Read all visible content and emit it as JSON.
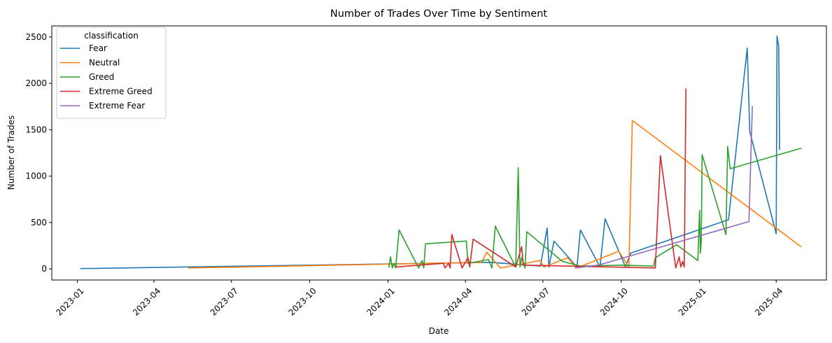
{
  "chart_data": {
    "type": "line",
    "title": "Number of Trades Over Time by Sentiment",
    "xlabel": "Date",
    "ylabel": "Number of Trades",
    "x_type": "date",
    "xlim": [
      "2022-12-02",
      "2025-05-30"
    ],
    "ylim": [
      -120,
      2620
    ],
    "x_ticks": [
      "2023-01",
      "2023-04",
      "2023-07",
      "2023-10",
      "2024-01",
      "2024-04",
      "2024-07",
      "2024-10",
      "2025-01",
      "2025-04"
    ],
    "y_ticks": [
      0,
      500,
      1000,
      1500,
      2000,
      2500
    ],
    "grid": false,
    "legend": {
      "title": "classification",
      "placement": "top-left"
    },
    "series": [
      {
        "name": "Fear",
        "color": "#1f77b4",
        "points": [
          [
            "2023-01-05",
            3
          ],
          [
            "2024-05-01",
            70
          ],
          [
            "2024-06-28",
            30
          ],
          [
            "2024-07-06",
            440
          ],
          [
            "2024-07-08",
            20
          ],
          [
            "2024-07-14",
            300
          ],
          [
            "2024-08-10",
            20
          ],
          [
            "2024-08-14",
            420
          ],
          [
            "2024-09-06",
            20
          ],
          [
            "2024-09-12",
            540
          ],
          [
            "2024-10-06",
            20
          ],
          [
            "2024-10-12",
            170
          ],
          [
            "2025-02-04",
            530
          ],
          [
            "2025-02-26",
            2380
          ],
          [
            "2025-03-01",
            1480
          ],
          [
            "2025-04-01",
            380
          ],
          [
            "2025-04-02",
            2510
          ],
          [
            "2025-04-04",
            2400
          ],
          [
            "2025-04-05",
            1290
          ]
        ]
      },
      {
        "name": "Neutral",
        "color": "#ff7f0e",
        "points": [
          [
            "2023-05-12",
            10
          ],
          [
            "2024-04-20",
            70
          ],
          [
            "2024-04-26",
            180
          ],
          [
            "2024-05-12",
            10
          ],
          [
            "2024-06-28",
            90
          ],
          [
            "2024-07-02",
            20
          ],
          [
            "2024-07-30",
            120
          ],
          [
            "2024-08-10",
            10
          ],
          [
            "2024-09-28",
            190
          ],
          [
            "2024-10-10",
            20
          ],
          [
            "2024-10-14",
            1600
          ],
          [
            "2025-04-01",
            440
          ],
          [
            "2025-04-30",
            240
          ]
        ]
      },
      {
        "name": "Greed",
        "color": "#2ca02c",
        "points": [
          [
            "2024-01-02",
            20
          ],
          [
            "2024-01-04",
            130
          ],
          [
            "2024-01-06",
            10
          ],
          [
            "2024-01-08",
            60
          ],
          [
            "2024-01-10",
            10
          ],
          [
            "2024-01-14",
            420
          ],
          [
            "2024-02-06",
            10
          ],
          [
            "2024-02-10",
            90
          ],
          [
            "2024-02-12",
            10
          ],
          [
            "2024-02-14",
            270
          ],
          [
            "2024-04-02",
            300
          ],
          [
            "2024-04-04",
            60
          ],
          [
            "2024-04-28",
            100
          ],
          [
            "2024-05-02",
            10
          ],
          [
            "2024-05-06",
            460
          ],
          [
            "2024-05-30",
            20
          ],
          [
            "2024-06-02",
            1090
          ],
          [
            "2024-06-04",
            20
          ],
          [
            "2024-06-06",
            120
          ],
          [
            "2024-06-10",
            10
          ],
          [
            "2024-06-12",
            400
          ],
          [
            "2024-07-24",
            80
          ],
          [
            "2024-08-14",
            30
          ],
          [
            "2024-10-02",
            40
          ],
          [
            "2024-11-08",
            30
          ],
          [
            "2024-11-10",
            120
          ],
          [
            "2024-12-05",
            260
          ],
          [
            "2024-12-30",
            90
          ],
          [
            "2025-01-01",
            630
          ],
          [
            "2025-01-02",
            170
          ],
          [
            "2025-01-03",
            300
          ],
          [
            "2025-01-04",
            1230
          ],
          [
            "2025-02-01",
            370
          ],
          [
            "2025-02-03",
            1320
          ],
          [
            "2025-02-06",
            1080
          ],
          [
            "2025-04-30",
            1300
          ]
        ]
      },
      {
        "name": "Extreme Greed",
        "color": "#d62728",
        "points": [
          [
            "2024-01-10",
            20
          ],
          [
            "2024-03-06",
            60
          ],
          [
            "2024-03-08",
            10
          ],
          [
            "2024-03-12",
            60
          ],
          [
            "2024-03-14",
            10
          ],
          [
            "2024-03-16",
            370
          ],
          [
            "2024-03-28",
            10
          ],
          [
            "2024-04-04",
            120
          ],
          [
            "2024-04-06",
            20
          ],
          [
            "2024-04-10",
            320
          ],
          [
            "2024-05-30",
            20
          ],
          [
            "2024-06-06",
            240
          ],
          [
            "2024-06-08",
            40
          ],
          [
            "2024-11-10",
            10
          ],
          [
            "2024-11-16",
            1220
          ],
          [
            "2024-12-04",
            10
          ],
          [
            "2024-12-08",
            130
          ],
          [
            "2024-12-10",
            20
          ],
          [
            "2024-12-12",
            80
          ],
          [
            "2024-12-14",
            20
          ],
          [
            "2024-12-16",
            1940
          ]
        ]
      },
      {
        "name": "Extreme Fear",
        "color": "#9467bd",
        "points": [
          [
            "2024-08-08",
            10
          ],
          [
            "2024-09-04",
            40
          ],
          [
            "2025-02-28",
            510
          ],
          [
            "2025-03-04",
            1750
          ]
        ]
      }
    ]
  }
}
